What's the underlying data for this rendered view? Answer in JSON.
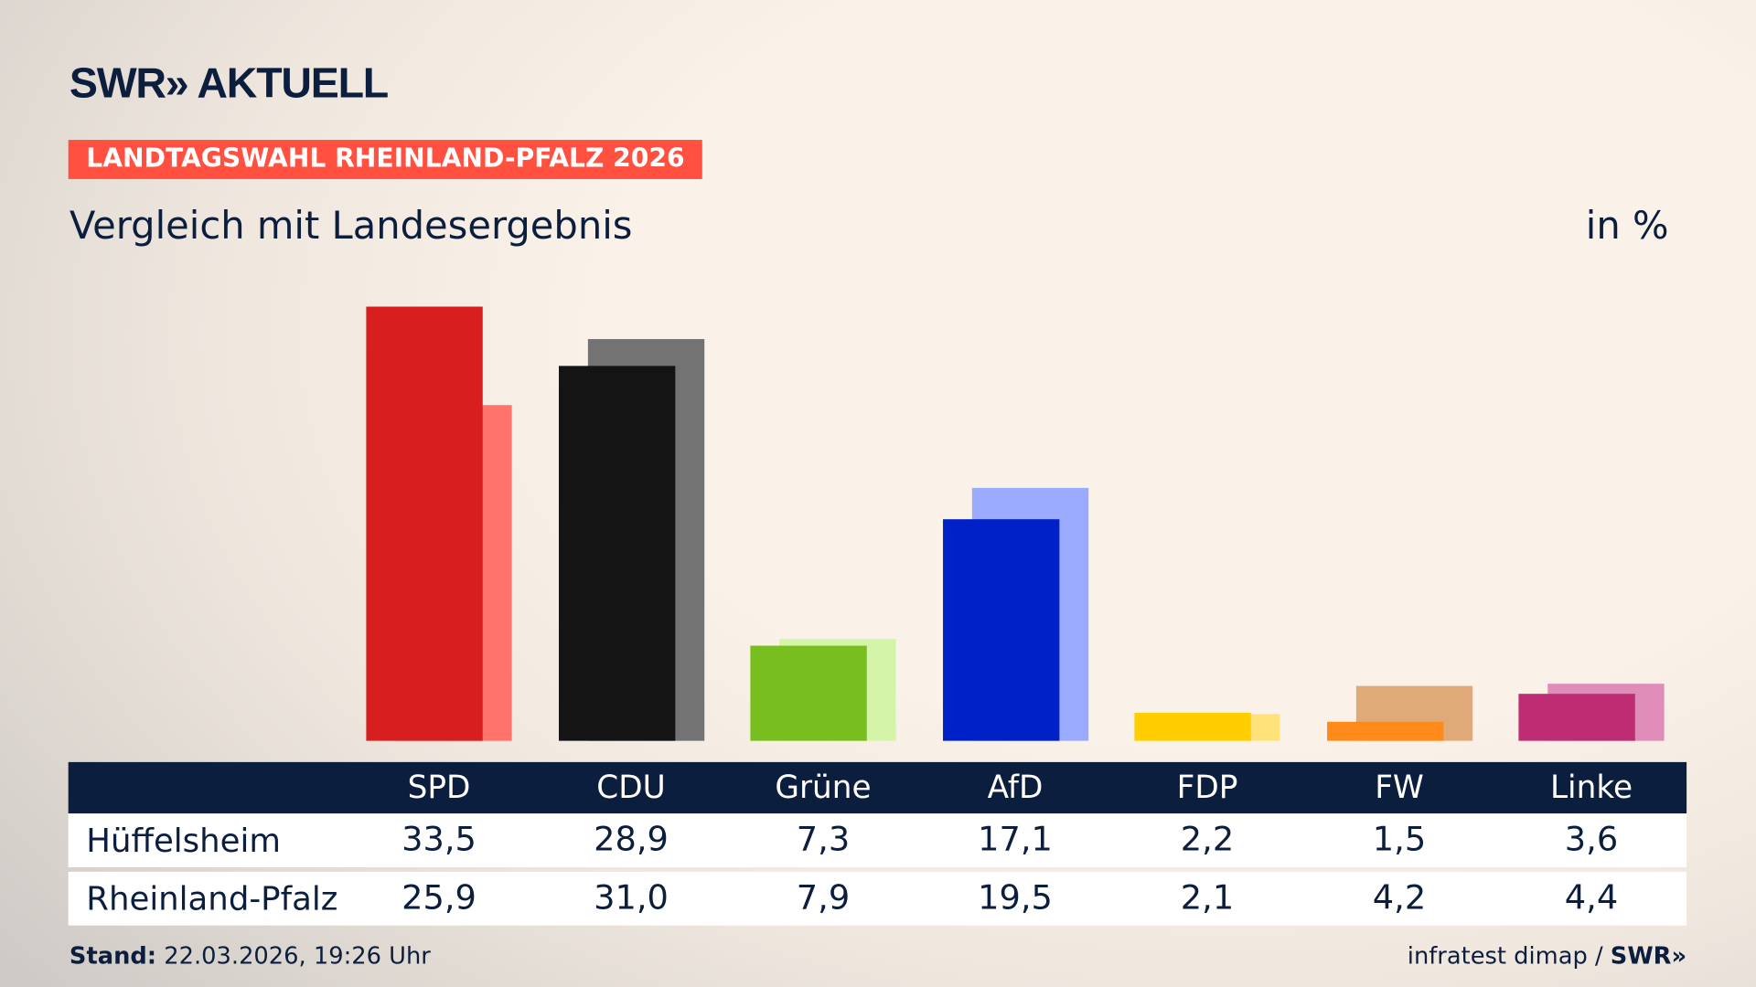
{
  "brand": {
    "logo": "SWR» AKTUELL",
    "badge": "LANDTAGSWAHL RHEINLAND-PFALZ 2026"
  },
  "subtitle": "Vergleich mit Landesergebnis",
  "unit": "in %",
  "chart_data": {
    "type": "bar",
    "categories": [
      "SPD",
      "CDU",
      "Grüne",
      "AfD",
      "FDP",
      "FW",
      "Linke"
    ],
    "series": [
      {
        "name": "Hüffelsheim",
        "values": [
          33.5,
          28.9,
          7.3,
          17.1,
          2.2,
          1.5,
          3.6
        ],
        "colors": [
          "#d71f1f",
          "#141414",
          "#78be1e",
          "#0021c8",
          "#ffcd00",
          "#ff8a19",
          "#be2d73"
        ]
      },
      {
        "name": "Rheinland-Pfalz",
        "values": [
          25.9,
          31.0,
          7.9,
          19.5,
          2.1,
          4.2,
          4.4
        ],
        "colors": [
          "#ff736b",
          "#737373",
          "#d4f5a8",
          "#9aabff",
          "#ffe27a",
          "#e0aa78",
          "#e08cb9"
        ]
      }
    ],
    "ylim": [
      0,
      33.5
    ]
  },
  "table": {
    "rows": [
      {
        "label": "Hüffelsheim",
        "values": [
          "33,5",
          "28,9",
          "7,3",
          "17,1",
          "2,2",
          "1,5",
          "3,6"
        ]
      },
      {
        "label": "Rheinland-Pfalz",
        "values": [
          "25,9",
          "31,0",
          "7,9",
          "19,5",
          "2,1",
          "4,2",
          "4,4"
        ]
      }
    ]
  },
  "footer": {
    "stand_label": "Stand:",
    "stand_value": "22.03.2026, 19:26 Uhr",
    "source": "infratest dimap / ",
    "source_logo": "SWR»"
  }
}
